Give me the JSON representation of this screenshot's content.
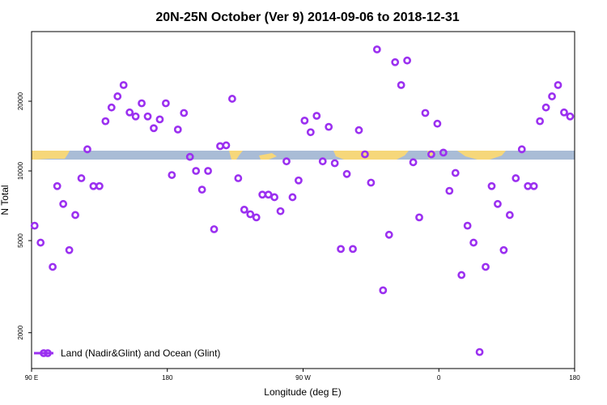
{
  "chart_data": {
    "type": "scatter",
    "title": "20N-25N October (Ver 9)   2014-09-06 to 2018-12-31",
    "xlabel": "Longitude (deg E)",
    "ylabel": "N Total",
    "xlim": [
      90,
      450
    ],
    "ylim": [
      1400,
      40000
    ],
    "y_scale": "log",
    "x_ticks": [
      {
        "value": 90,
        "label": "90 E"
      },
      {
        "value": 180,
        "label": "180"
      },
      {
        "value": 270,
        "label": "90 W"
      },
      {
        "value": 360,
        "label": "0"
      },
      {
        "value": 450,
        "label": "180"
      }
    ],
    "y_ticks": [
      {
        "value": 2000,
        "label": "2000"
      },
      {
        "value": 5000,
        "label": "5000"
      },
      {
        "value": 10000,
        "label": "10000"
      },
      {
        "value": 20000,
        "label": "20000"
      }
    ],
    "grid": false,
    "legend_position": "bottom-left",
    "series": [
      {
        "name": "Land (Nadir&Glint) and Ocean (Glint)",
        "color": "#9b30f0",
        "marker": "open-circle",
        "points": [
          [
            92,
            5800
          ],
          [
            96,
            4900
          ],
          [
            104,
            3850
          ],
          [
            107,
            8600
          ],
          [
            111,
            7200
          ],
          [
            115,
            4550
          ],
          [
            119,
            6450
          ],
          [
            123,
            9300
          ],
          [
            127,
            12400
          ],
          [
            131,
            8600
          ],
          [
            135,
            8600
          ],
          [
            139,
            16400
          ],
          [
            143,
            18800
          ],
          [
            147,
            21000
          ],
          [
            151,
            23500
          ],
          [
            155,
            17900
          ],
          [
            159,
            17200
          ],
          [
            163,
            19600
          ],
          [
            167,
            17200
          ],
          [
            171,
            15300
          ],
          [
            175,
            16700
          ],
          [
            179,
            19600
          ],
          [
            183,
            9600
          ],
          [
            187,
            15100
          ],
          [
            191,
            17800
          ],
          [
            195,
            11500
          ],
          [
            199,
            10000
          ],
          [
            203,
            8300
          ],
          [
            207,
            10000
          ],
          [
            211,
            5600
          ],
          [
            215,
            12800
          ],
          [
            219,
            12900
          ],
          [
            223,
            20500
          ],
          [
            227,
            9300
          ],
          [
            231,
            6800
          ],
          [
            235,
            6500
          ],
          [
            239,
            6300
          ],
          [
            243,
            7900
          ],
          [
            247,
            7900
          ],
          [
            251,
            7700
          ],
          [
            255,
            6700
          ],
          [
            259,
            11000
          ],
          [
            263,
            7700
          ],
          [
            267,
            9100
          ],
          [
            271,
            16500
          ],
          [
            275,
            14700
          ],
          [
            279,
            17300
          ],
          [
            283,
            11000
          ],
          [
            287,
            15500
          ],
          [
            291,
            10800
          ],
          [
            295,
            4600
          ],
          [
            299,
            9700
          ],
          [
            303,
            4600
          ],
          [
            307,
            15000
          ],
          [
            311,
            11800
          ],
          [
            315,
            8900
          ],
          [
            319,
            33500
          ],
          [
            323,
            3050
          ],
          [
            327,
            5300
          ],
          [
            331,
            29500
          ],
          [
            335,
            23500
          ],
          [
            339,
            30000
          ],
          [
            343,
            10900
          ],
          [
            347,
            6300
          ],
          [
            351,
            17800
          ],
          [
            355,
            11800
          ],
          [
            359,
            16000
          ],
          [
            363,
            12000
          ],
          [
            367,
            8200
          ],
          [
            371,
            9800
          ],
          [
            375,
            3550
          ],
          [
            379,
            5800
          ],
          [
            383,
            4900
          ],
          [
            387,
            1650
          ],
          [
            391,
            3850
          ],
          [
            395,
            8600
          ],
          [
            399,
            7200
          ],
          [
            403,
            4550
          ],
          [
            407,
            6450
          ],
          [
            411,
            9300
          ],
          [
            415,
            12400
          ],
          [
            419,
            8600
          ],
          [
            423,
            8600
          ],
          [
            427,
            16400
          ],
          [
            431,
            18800
          ],
          [
            435,
            21000
          ],
          [
            439,
            23500
          ],
          [
            443,
            17900
          ],
          [
            447,
            17200
          ]
        ]
      }
    ]
  }
}
